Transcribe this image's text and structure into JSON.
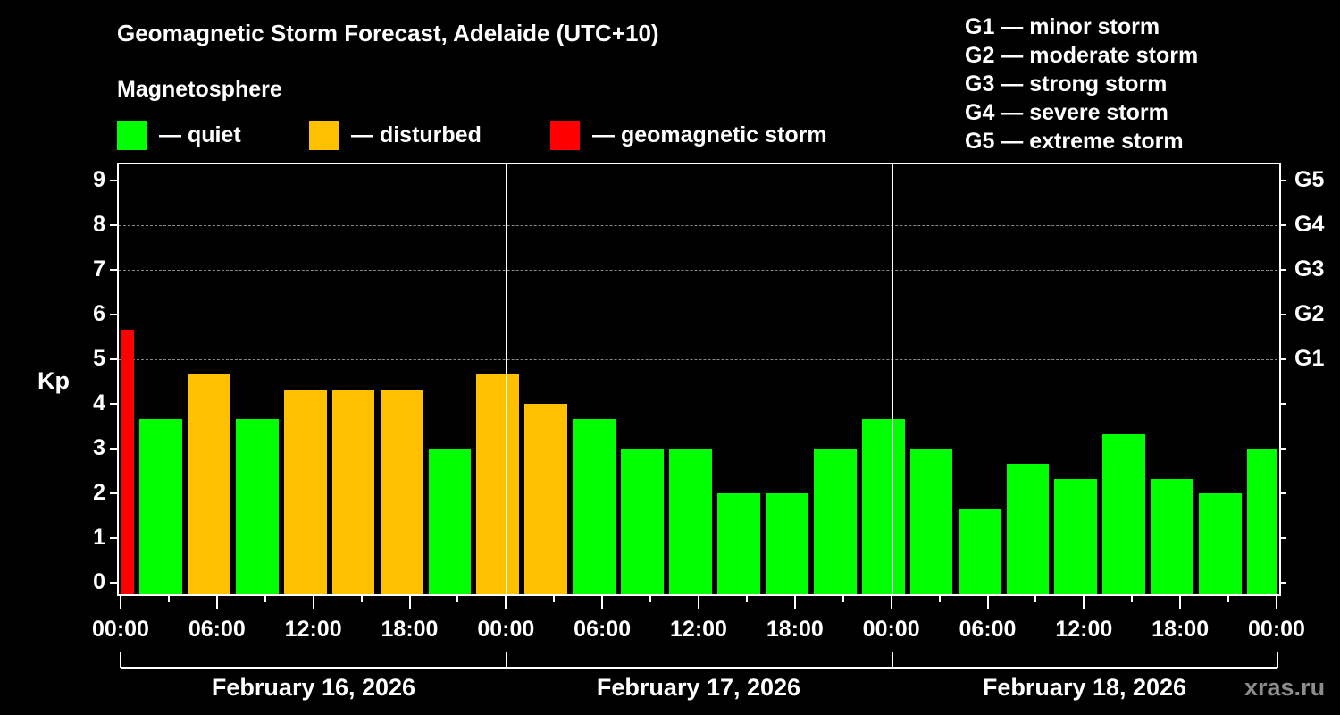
{
  "header": {
    "title": "Geomagnetic Storm Forecast, Adelaide (UTC+10)",
    "subtitle": "Magnetosphere"
  },
  "legend": [
    {
      "label": "— quiet",
      "color": "#00ff00"
    },
    {
      "label": "— disturbed",
      "color": "#ffc000"
    },
    {
      "label": "— geomagnetic storm",
      "color": "#ff0000"
    }
  ],
  "g_scale_legend": [
    "G1 — minor storm",
    "G2 — moderate storm",
    "G3 — strong storm",
    "G4 — severe storm",
    "G5 — extreme storm"
  ],
  "axes": {
    "y_label": "Kp",
    "y_ticks": [
      "0",
      "1",
      "2",
      "3",
      "4",
      "5",
      "6",
      "7",
      "8",
      "9"
    ],
    "g_ticks": [
      {
        "label": "G1",
        "kp": 5
      },
      {
        "label": "G2",
        "kp": 6
      },
      {
        "label": "G3",
        "kp": 7
      },
      {
        "label": "G4",
        "kp": 8
      },
      {
        "label": "G5",
        "kp": 9
      }
    ],
    "x_ticks": [
      "00:00",
      "06:00",
      "12:00",
      "18:00",
      "00:00",
      "06:00",
      "12:00",
      "18:00",
      "00:00",
      "06:00",
      "12:00",
      "18:00",
      "00:00"
    ],
    "dates": [
      "February 16, 2026",
      "February 17, 2026",
      "February 18, 2026"
    ]
  },
  "watermark": "xras.ru",
  "colors": {
    "quiet": "#00ff00",
    "disturbed": "#ffc000",
    "storm": "#ff0000",
    "background": "#000000",
    "grid": "#8a8a8a"
  },
  "chart_data": {
    "type": "bar",
    "title": "Geomagnetic Storm Forecast, Adelaide (UTC+10)",
    "subtitle": "Magnetosphere",
    "xlabel": "",
    "ylabel": "Kp",
    "ylim": [
      0,
      9
    ],
    "grid": "horizontal dashed at Kp 5-9",
    "legend_position": "top",
    "secondary_y_ticks": {
      "G1": 5,
      "G2": 6,
      "G3": 7,
      "G4": 8,
      "G5": 9
    },
    "x_range_hours": [
      0,
      72
    ],
    "categories": [
      "Feb 16 00:00-00:30",
      "Feb 16 01:30",
      "Feb 16 04:30",
      "Feb 16 07:30",
      "Feb 16 10:30",
      "Feb 16 13:30",
      "Feb 16 16:30",
      "Feb 16 19:30",
      "Feb 16 22:30",
      "Feb 17 01:30",
      "Feb 17 04:30",
      "Feb 17 07:30",
      "Feb 17 10:30",
      "Feb 17 13:30",
      "Feb 17 16:30",
      "Feb 17 19:30",
      "Feb 17 22:30",
      "Feb 18 01:30",
      "Feb 18 04:30",
      "Feb 18 07:30",
      "Feb 18 10:30",
      "Feb 18 13:30",
      "Feb 18 16:30",
      "Feb 18 19:30",
      "Feb 18 22:30"
    ],
    "bars": [
      {
        "start_h": 0.0,
        "end_h": 0.85,
        "kp": 5.67,
        "status": "storm"
      },
      {
        "start_h": 1.17,
        "end_h": 3.83,
        "kp": 3.67,
        "status": "quiet"
      },
      {
        "start_h": 4.17,
        "end_h": 6.83,
        "kp": 4.67,
        "status": "disturbed"
      },
      {
        "start_h": 7.17,
        "end_h": 9.83,
        "kp": 3.67,
        "status": "quiet"
      },
      {
        "start_h": 10.17,
        "end_h": 12.83,
        "kp": 4.33,
        "status": "disturbed"
      },
      {
        "start_h": 13.17,
        "end_h": 15.83,
        "kp": 4.33,
        "status": "disturbed"
      },
      {
        "start_h": 16.17,
        "end_h": 18.83,
        "kp": 4.33,
        "status": "disturbed"
      },
      {
        "start_h": 19.17,
        "end_h": 21.83,
        "kp": 3.0,
        "status": "quiet"
      },
      {
        "start_h": 22.17,
        "end_h": 24.83,
        "kp": 4.67,
        "status": "disturbed"
      },
      {
        "start_h": 25.17,
        "end_h": 27.83,
        "kp": 4.0,
        "status": "disturbed"
      },
      {
        "start_h": 28.17,
        "end_h": 30.83,
        "kp": 3.67,
        "status": "quiet"
      },
      {
        "start_h": 31.17,
        "end_h": 33.83,
        "kp": 3.0,
        "status": "quiet"
      },
      {
        "start_h": 34.17,
        "end_h": 36.83,
        "kp": 3.0,
        "status": "quiet"
      },
      {
        "start_h": 37.17,
        "end_h": 39.83,
        "kp": 2.0,
        "status": "quiet"
      },
      {
        "start_h": 40.17,
        "end_h": 42.83,
        "kp": 2.0,
        "status": "quiet"
      },
      {
        "start_h": 43.17,
        "end_h": 45.83,
        "kp": 3.0,
        "status": "quiet"
      },
      {
        "start_h": 46.17,
        "end_h": 48.83,
        "kp": 3.67,
        "status": "quiet"
      },
      {
        "start_h": 49.17,
        "end_h": 51.83,
        "kp": 3.0,
        "status": "quiet"
      },
      {
        "start_h": 52.17,
        "end_h": 54.83,
        "kp": 1.67,
        "status": "quiet"
      },
      {
        "start_h": 55.17,
        "end_h": 57.83,
        "kp": 2.67,
        "status": "quiet"
      },
      {
        "start_h": 58.17,
        "end_h": 60.83,
        "kp": 2.33,
        "status": "quiet"
      },
      {
        "start_h": 61.17,
        "end_h": 63.83,
        "kp": 3.33,
        "status": "quiet"
      },
      {
        "start_h": 64.17,
        "end_h": 66.83,
        "kp": 2.33,
        "status": "quiet"
      },
      {
        "start_h": 67.17,
        "end_h": 69.83,
        "kp": 2.0,
        "status": "quiet"
      },
      {
        "start_h": 70.17,
        "end_h": 72.0,
        "kp": 3.0,
        "status": "quiet"
      }
    ],
    "values": [
      5.67,
      3.67,
      4.67,
      3.67,
      4.33,
      4.33,
      4.33,
      3.0,
      4.67,
      4.0,
      3.67,
      3.0,
      3.0,
      2.0,
      2.0,
      3.0,
      3.67,
      3.0,
      1.67,
      2.67,
      2.33,
      3.33,
      2.33,
      2.0,
      3.0
    ],
    "x_tick_labels": [
      "00:00",
      "06:00",
      "12:00",
      "18:00",
      "00:00",
      "06:00",
      "12:00",
      "18:00",
      "00:00",
      "06:00",
      "12:00",
      "18:00",
      "00:00"
    ],
    "date_labels": [
      "February 16, 2026",
      "February 17, 2026",
      "February 18, 2026"
    ],
    "legend": [
      "quiet",
      "disturbed",
      "geomagnetic storm"
    ]
  }
}
